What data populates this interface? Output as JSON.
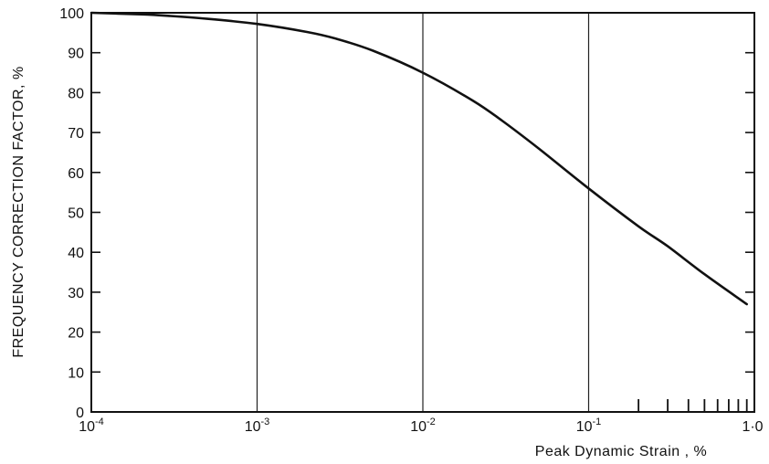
{
  "chart_data": {
    "type": "line",
    "title": "",
    "xlabel": "Peak Dynamic Strain , %",
    "ylabel": "FREQUENCY CORRECTION FACTOR, %",
    "xscale": "log",
    "xlim": [
      0.0001,
      1.0
    ],
    "ylim": [
      0,
      100
    ],
    "grid": "vertical lines at decades",
    "x_tick_labels": [
      {
        "value": 0.0001,
        "base": "10",
        "exp": "-4"
      },
      {
        "value": 0.001,
        "base": "10",
        "exp": "-3"
      },
      {
        "value": 0.01,
        "base": "10",
        "exp": "-2"
      },
      {
        "value": 0.1,
        "base": "10",
        "exp": "-1"
      },
      {
        "value": 1.0,
        "base": "1·0",
        "exp": ""
      }
    ],
    "y_ticks": [
      "0",
      "10",
      "20",
      "30",
      "40",
      "50",
      "60",
      "70",
      "80",
      "90",
      "100"
    ],
    "minor_x_ticks": [
      0.2,
      0.3,
      0.4,
      0.5,
      0.6,
      0.7,
      0.8,
      0.9
    ],
    "series": [
      {
        "x": [
          0.0001,
          0.0002,
          0.0003,
          0.0005,
          0.001,
          0.002,
          0.003,
          0.005,
          0.01,
          0.02,
          0.03,
          0.05,
          0.1,
          0.2,
          0.3,
          0.5,
          0.9
        ],
        "y": [
          100,
          99.6,
          99.2,
          98.5,
          97.2,
          95.2,
          93.5,
          90.5,
          85,
          78,
          73,
          66,
          56,
          46.5,
          41.5,
          34.5,
          27
        ]
      }
    ]
  }
}
